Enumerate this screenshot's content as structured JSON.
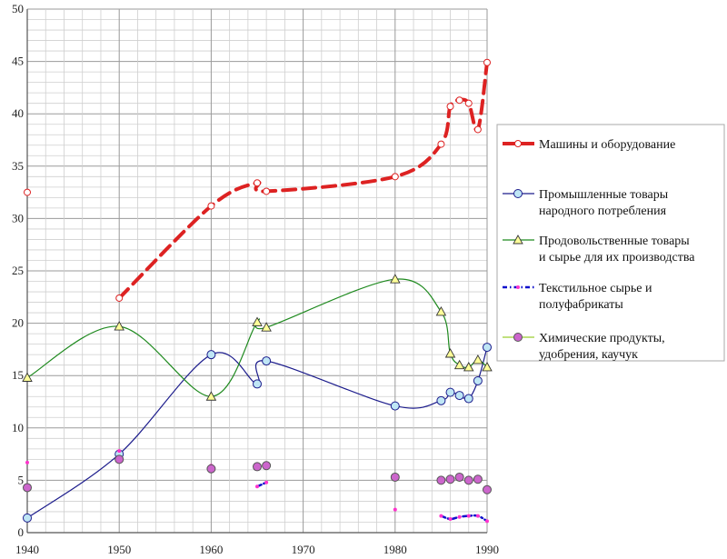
{
  "chart_data": {
    "type": "line",
    "xlim": [
      1940,
      1990
    ],
    "ylim": [
      0,
      50
    ],
    "x_ticks": [
      "1940",
      "1950",
      "1960",
      "1970",
      "1980",
      "1990"
    ],
    "y_ticks": [
      "0",
      "5",
      "10",
      "15",
      "20",
      "25",
      "30",
      "35",
      "40",
      "45",
      "50"
    ],
    "grid": true,
    "legend_position": "right",
    "series": [
      {
        "name": "Машины и оборудование",
        "color": "#dd2222",
        "marker": "circle",
        "marker_fill": "#ffffff",
        "line": "bold-dashed",
        "points": [
          [
            1940,
            32.5
          ],
          [
            1950,
            22.4
          ],
          [
            1960,
            31.2
          ],
          [
            1965,
            33.4
          ],
          [
            1966,
            32.6
          ],
          [
            1980,
            34.0
          ],
          [
            1985,
            37.1
          ],
          [
            1986,
            40.7
          ],
          [
            1987,
            41.3
          ],
          [
            1988,
            41.0
          ],
          [
            1989,
            38.5
          ],
          [
            1990,
            44.9
          ]
        ]
      },
      {
        "name": "Промышленные товары народного потребления",
        "color": "#1c1c8c",
        "marker": "circle",
        "marker_fill": "#bfe6f5",
        "line": "solid",
        "points": [
          [
            1940,
            1.4
          ],
          [
            1950,
            7.5
          ],
          [
            1960,
            17.0
          ],
          [
            1965,
            14.2
          ],
          [
            1966,
            16.4
          ],
          [
            1980,
            12.1
          ],
          [
            1985,
            12.6
          ],
          [
            1986,
            13.4
          ],
          [
            1987,
            13.1
          ],
          [
            1988,
            12.8
          ],
          [
            1989,
            14.5
          ],
          [
            1990,
            17.7
          ]
        ]
      },
      {
        "name": "Продовольственные товары и сырье для их производства",
        "color": "#1f8a1f",
        "marker": "triangle",
        "marker_fill": "#ffff99",
        "line": "solid",
        "points": [
          [
            1940,
            14.8
          ],
          [
            1950,
            19.7
          ],
          [
            1960,
            13.0
          ],
          [
            1965,
            20.1
          ],
          [
            1966,
            19.6
          ],
          [
            1980,
            24.2
          ],
          [
            1985,
            21.1
          ],
          [
            1986,
            17.1
          ],
          [
            1987,
            16.0
          ],
          [
            1988,
            15.8
          ],
          [
            1989,
            16.5
          ],
          [
            1990,
            15.8
          ]
        ]
      },
      {
        "name": "Текстильное сырье и полуфабрикаты",
        "color": "#1010cc",
        "marker": "dot",
        "marker_fill": "#ff33cc",
        "line": "dashdot",
        "points": [
          [
            1940,
            6.7
          ],
          [
            1950,
            7.8
          ],
          [
            1960,
            6.4
          ],
          [
            1965,
            4.4
          ],
          [
            1966,
            4.8
          ],
          [
            1980,
            2.2
          ],
          [
            1985,
            1.6
          ],
          [
            1986,
            1.3
          ],
          [
            1987,
            1.5
          ],
          [
            1988,
            1.6
          ],
          [
            1989,
            1.6
          ],
          [
            1990,
            1.1
          ]
        ]
      },
      {
        "name": "Химические продукты, удобрения, каучук",
        "color": "#9acd32",
        "marker": "circle",
        "marker_fill": "#cc66cc",
        "line": "solid",
        "points": [
          [
            1940,
            4.3
          ],
          [
            1950,
            7.0
          ],
          [
            1960,
            6.1
          ],
          [
            1965,
            6.3
          ],
          [
            1966,
            6.4
          ],
          [
            1980,
            5.3
          ],
          [
            1985,
            5.0
          ],
          [
            1986,
            5.1
          ],
          [
            1987,
            5.3
          ],
          [
            1988,
            5.0
          ],
          [
            1989,
            5.1
          ],
          [
            1990,
            4.1
          ]
        ]
      }
    ],
    "legend_lines": [
      [
        "Машины и оборудование"
      ],
      [
        "Промышленные товары",
        "народного потребления"
      ],
      [
        "Продовольственные товары",
        "и сырье для их производства"
      ],
      [
        "Текстильное сырье и",
        "полуфабрикаты"
      ],
      [
        "Химические продукты,",
        "удобрения, каучук"
      ]
    ]
  }
}
